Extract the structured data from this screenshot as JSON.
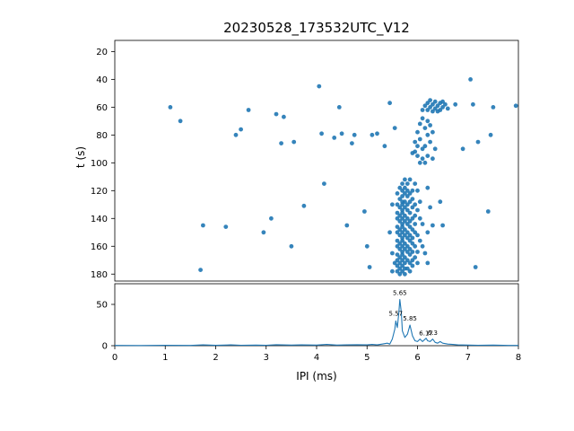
{
  "figure": {
    "background": "#ffffff",
    "title": "20230528_173532UTC_V12"
  },
  "chart_data": [
    {
      "type": "scatter",
      "title": "20230528_173532UTC_V12",
      "ylabel": "t (s)",
      "xlim": [
        0,
        8
      ],
      "ylim": [
        12,
        185
      ],
      "y_inverted": true,
      "yticks": [
        20,
        40,
        60,
        80,
        100,
        120,
        140,
        160,
        180
      ],
      "marker_color": "#1f77b4",
      "grid": false,
      "points": [
        [
          1.1,
          60
        ],
        [
          1.3,
          70
        ],
        [
          1.7,
          177
        ],
        [
          1.75,
          145
        ],
        [
          2.2,
          146
        ],
        [
          2.4,
          80
        ],
        [
          2.5,
          76
        ],
        [
          2.65,
          62
        ],
        [
          2.95,
          150
        ],
        [
          3.1,
          140
        ],
        [
          3.2,
          65
        ],
        [
          3.3,
          86
        ],
        [
          3.35,
          67
        ],
        [
          3.5,
          160
        ],
        [
          3.55,
          85
        ],
        [
          3.75,
          131
        ],
        [
          4.05,
          45
        ],
        [
          4.1,
          79
        ],
        [
          4.15,
          115
        ],
        [
          4.35,
          82
        ],
        [
          4.45,
          60
        ],
        [
          4.5,
          79
        ],
        [
          4.6,
          145
        ],
        [
          4.7,
          86
        ],
        [
          4.75,
          80
        ],
        [
          4.95,
          135
        ],
        [
          5.0,
          160
        ],
        [
          5.05,
          175
        ],
        [
          5.1,
          80
        ],
        [
          5.2,
          79
        ],
        [
          5.35,
          88
        ],
        [
          5.45,
          57
        ],
        [
          5.55,
          75
        ],
        [
          6.9,
          90
        ],
        [
          7.05,
          40
        ],
        [
          7.1,
          58
        ],
        [
          7.2,
          85
        ],
        [
          7.15,
          175
        ],
        [
          7.4,
          135
        ],
        [
          7.45,
          80
        ],
        [
          7.5,
          60
        ],
        [
          7.95,
          59
        ],
        [
          6.75,
          58
        ],
        [
          6.1,
          62
        ],
        [
          6.15,
          59
        ],
        [
          6.2,
          57
        ],
        [
          6.2,
          62
        ],
        [
          6.25,
          60
        ],
        [
          6.3,
          58
        ],
        [
          6.3,
          63
        ],
        [
          6.35,
          56
        ],
        [
          6.35,
          61
        ],
        [
          6.4,
          59
        ],
        [
          6.45,
          57
        ],
        [
          6.45,
          62
        ],
        [
          6.5,
          60
        ],
        [
          6.55,
          58
        ],
        [
          6.6,
          61
        ],
        [
          6.25,
          55
        ],
        [
          6.4,
          63
        ],
        [
          6.5,
          56
        ],
        [
          5.9,
          93
        ],
        [
          5.95,
          85
        ],
        [
          5.95,
          92
        ],
        [
          6.0,
          78
        ],
        [
          6.0,
          88
        ],
        [
          6.0,
          95
        ],
        [
          6.05,
          72
        ],
        [
          6.05,
          83
        ],
        [
          6.05,
          100
        ],
        [
          6.1,
          68
        ],
        [
          6.1,
          90
        ],
        [
          6.1,
          97
        ],
        [
          6.15,
          75
        ],
        [
          6.15,
          88
        ],
        [
          6.2,
          70
        ],
        [
          6.2,
          80
        ],
        [
          6.2,
          95
        ],
        [
          6.25,
          73
        ],
        [
          6.25,
          85
        ],
        [
          6.3,
          78
        ],
        [
          6.35,
          90
        ],
        [
          6.15,
          100
        ],
        [
          6.3,
          97
        ],
        [
          5.75,
          112
        ],
        [
          5.85,
          112
        ],
        [
          5.7,
          115
        ],
        [
          5.8,
          115
        ],
        [
          5.95,
          115
        ],
        [
          5.65,
          118
        ],
        [
          5.75,
          118
        ],
        [
          5.7,
          120
        ],
        [
          5.8,
          120
        ],
        [
          5.9,
          120
        ],
        [
          6.0,
          120
        ],
        [
          5.6,
          122
        ],
        [
          5.75,
          122
        ],
        [
          5.85,
          122
        ],
        [
          5.7,
          124
        ],
        [
          5.8,
          124
        ],
        [
          5.65,
          126
        ],
        [
          5.9,
          126
        ],
        [
          5.7,
          128
        ],
        [
          5.75,
          128
        ],
        [
          5.85,
          128
        ],
        [
          6.05,
          128
        ],
        [
          5.6,
          130
        ],
        [
          5.7,
          130
        ],
        [
          5.8,
          130
        ],
        [
          5.95,
          130
        ],
        [
          5.65,
          132
        ],
        [
          5.75,
          132
        ],
        [
          5.9,
          132
        ],
        [
          5.7,
          134
        ],
        [
          5.8,
          134
        ],
        [
          6.0,
          134
        ],
        [
          5.6,
          136
        ],
        [
          5.7,
          136
        ],
        [
          5.85,
          136
        ],
        [
          5.65,
          138
        ],
        [
          5.75,
          138
        ],
        [
          5.95,
          138
        ],
        [
          5.6,
          140
        ],
        [
          5.7,
          140
        ],
        [
          5.8,
          140
        ],
        [
          5.9,
          140
        ],
        [
          6.05,
          140
        ],
        [
          5.65,
          142
        ],
        [
          5.75,
          142
        ],
        [
          5.85,
          142
        ],
        [
          5.7,
          144
        ],
        [
          5.8,
          144
        ],
        [
          5.95,
          144
        ],
        [
          6.1,
          144
        ],
        [
          5.6,
          146
        ],
        [
          5.7,
          146
        ],
        [
          5.85,
          146
        ],
        [
          5.65,
          148
        ],
        [
          5.75,
          148
        ],
        [
          5.9,
          148
        ],
        [
          5.6,
          150
        ],
        [
          5.7,
          150
        ],
        [
          5.8,
          150
        ],
        [
          5.95,
          150
        ],
        [
          5.65,
          152
        ],
        [
          5.75,
          152
        ],
        [
          5.85,
          152
        ],
        [
          6.0,
          152
        ],
        [
          5.7,
          154
        ],
        [
          5.8,
          154
        ],
        [
          5.9,
          154
        ],
        [
          5.6,
          156
        ],
        [
          5.7,
          156
        ],
        [
          5.85,
          156
        ],
        [
          6.05,
          156
        ],
        [
          5.65,
          158
        ],
        [
          5.75,
          158
        ],
        [
          5.9,
          158
        ],
        [
          5.6,
          160
        ],
        [
          5.7,
          160
        ],
        [
          5.8,
          160
        ],
        [
          5.95,
          160
        ],
        [
          6.1,
          160
        ],
        [
          5.65,
          162
        ],
        [
          5.75,
          162
        ],
        [
          5.85,
          162
        ],
        [
          5.7,
          164
        ],
        [
          5.8,
          164
        ],
        [
          5.9,
          164
        ],
        [
          6.0,
          164
        ],
        [
          5.6,
          166
        ],
        [
          5.7,
          166
        ],
        [
          5.85,
          166
        ],
        [
          5.65,
          168
        ],
        [
          5.75,
          168
        ],
        [
          5.95,
          168
        ],
        [
          5.6,
          170
        ],
        [
          5.7,
          170
        ],
        [
          5.8,
          170
        ],
        [
          5.9,
          170
        ],
        [
          5.65,
          172
        ],
        [
          5.75,
          172
        ],
        [
          5.85,
          172
        ],
        [
          6.0,
          172
        ],
        [
          5.6,
          174
        ],
        [
          5.7,
          174
        ],
        [
          5.9,
          174
        ],
        [
          5.65,
          176
        ],
        [
          5.75,
          176
        ],
        [
          5.8,
          176
        ],
        [
          5.6,
          178
        ],
        [
          5.7,
          178
        ],
        [
          5.85,
          178
        ],
        [
          5.65,
          180
        ],
        [
          5.75,
          180
        ],
        [
          6.2,
          118
        ],
        [
          6.25,
          132
        ],
        [
          6.2,
          150
        ],
        [
          6.3,
          145
        ],
        [
          6.15,
          165
        ],
        [
          6.2,
          172
        ],
        [
          6.45,
          128
        ],
        [
          6.5,
          145
        ],
        [
          5.5,
          130
        ],
        [
          5.45,
          150
        ],
        [
          5.5,
          165
        ],
        [
          5.55,
          172
        ],
        [
          5.5,
          178
        ]
      ]
    },
    {
      "type": "line",
      "xlabel": "IPI (ms)",
      "xlim": [
        0,
        8
      ],
      "ylim": [
        0,
        75
      ],
      "xticks": [
        0,
        1,
        2,
        3,
        4,
        5,
        6,
        7,
        8
      ],
      "yticks": [
        0,
        50
      ],
      "line_color": "#1f77b4",
      "grid": false,
      "points": [
        [
          0,
          0.3
        ],
        [
          0.5,
          0.2
        ],
        [
          1,
          0.4
        ],
        [
          1.5,
          0.3
        ],
        [
          1.75,
          1
        ],
        [
          2,
          0.4
        ],
        [
          2.3,
          1
        ],
        [
          2.5,
          0.5
        ],
        [
          2.8,
          0.8
        ],
        [
          3,
          0.5
        ],
        [
          3.2,
          1.2
        ],
        [
          3.5,
          0.8
        ],
        [
          3.7,
          1
        ],
        [
          4,
          0.8
        ],
        [
          4.2,
          1.5
        ],
        [
          4.4,
          0.8
        ],
        [
          4.6,
          1
        ],
        [
          4.8,
          1.2
        ],
        [
          5,
          1
        ],
        [
          5.1,
          1.5
        ],
        [
          5.2,
          1
        ],
        [
          5.3,
          2
        ],
        [
          5.4,
          3
        ],
        [
          5.45,
          2
        ],
        [
          5.5,
          8
        ],
        [
          5.55,
          20
        ],
        [
          5.57,
          30
        ],
        [
          5.6,
          22
        ],
        [
          5.63,
          40
        ],
        [
          5.65,
          56
        ],
        [
          5.68,
          40
        ],
        [
          5.7,
          18
        ],
        [
          5.75,
          10
        ],
        [
          5.8,
          14
        ],
        [
          5.85,
          25
        ],
        [
          5.9,
          12
        ],
        [
          5.95,
          6
        ],
        [
          6.0,
          5
        ],
        [
          6.05,
          8
        ],
        [
          6.1,
          5
        ],
        [
          6.17,
          9
        ],
        [
          6.2,
          6
        ],
        [
          6.25,
          5
        ],
        [
          6.3,
          8
        ],
        [
          6.35,
          4
        ],
        [
          6.4,
          3
        ],
        [
          6.45,
          5
        ],
        [
          6.5,
          3
        ],
        [
          6.6,
          2
        ],
        [
          6.7,
          1.5
        ],
        [
          6.8,
          1
        ],
        [
          7,
          0.8
        ],
        [
          7.2,
          0.5
        ],
        [
          7.5,
          0.8
        ],
        [
          7.8,
          0.3
        ],
        [
          8,
          0.3
        ]
      ],
      "annotations": [
        {
          "x": 5.65,
          "y": 58,
          "label": "5.65"
        },
        {
          "x": 5.57,
          "y": 33,
          "label": "5.57"
        },
        {
          "x": 5.85,
          "y": 27,
          "label": "5.85"
        },
        {
          "x": 6.3,
          "y": 10,
          "label": "6.3"
        },
        {
          "x": 6.17,
          "y": 9,
          "label": "6.17"
        }
      ]
    }
  ]
}
